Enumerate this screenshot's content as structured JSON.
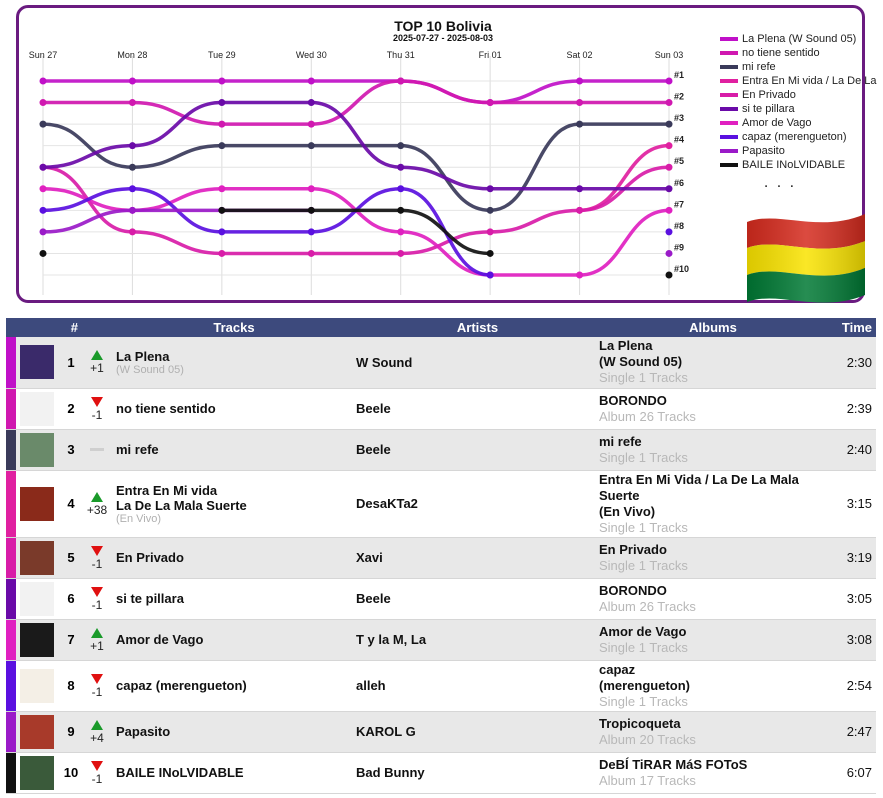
{
  "chart_data": {
    "type": "line",
    "title": "TOP 10 Bolivia",
    "subtitle": "2025-07-27 - 2025-08-03",
    "x": [
      "Sun 27",
      "Mon 28",
      "Tue 29",
      "Wed 30",
      "Thu 31",
      "Fri 01",
      "Sat 02",
      "Sun 03"
    ],
    "y_rank_labels": [
      "#1",
      "#2",
      "#3",
      "#4",
      "#5",
      "#6",
      "#7",
      "#8",
      "#9",
      "#10"
    ],
    "ylim": [
      1,
      10
    ],
    "y_inverted": true,
    "series": [
      {
        "name": "La Plena (W Sound 05)",
        "color": "#c010c8",
        "ranks": [
          1,
          1,
          1,
          1,
          1,
          2,
          1,
          1
        ]
      },
      {
        "name": "no tiene sentido",
        "color": "#d018b0",
        "ranks": [
          2,
          2,
          3,
          3,
          1,
          2,
          2,
          2
        ]
      },
      {
        "name": "mi refe",
        "color": "#3a3a5a",
        "ranks": [
          3,
          5,
          4,
          4,
          4,
          7,
          3,
          3
        ]
      },
      {
        "name": "Entra En Mi vida / La De La Mala Suerte",
        "color": "#e020a0",
        "ranks": [
          null,
          null,
          null,
          null,
          null,
          null,
          7,
          4
        ]
      },
      {
        "name": "En Privado",
        "color": "#d81ca8",
        "ranks": [
          5,
          8,
          9,
          9,
          9,
          8,
          7,
          5
        ]
      },
      {
        "name": "si te pillara",
        "color": "#6a0aa8",
        "ranks": [
          5,
          4,
          2,
          2,
          5,
          6,
          6,
          6
        ]
      },
      {
        "name": "Amor de Vago",
        "color": "#e020c0",
        "ranks": [
          6,
          7,
          6,
          6,
          8,
          10,
          10,
          7
        ]
      },
      {
        "name": "capaz (merengueton)",
        "color": "#5a10e0",
        "ranks": [
          7,
          6,
          8,
          8,
          6,
          10,
          null,
          8
        ]
      },
      {
        "name": "Papasito",
        "color": "#9a1ac8",
        "ranks": [
          8,
          7,
          7,
          7,
          null,
          null,
          null,
          9
        ]
      },
      {
        "name": "BAILE INoLVIDABLE",
        "color": "#111111",
        "ranks": [
          9,
          null,
          7,
          7,
          7,
          9,
          null,
          10
        ]
      }
    ],
    "legend": "right",
    "legend_more": ". . ."
  },
  "table": {
    "headers": {
      "num": "#",
      "tracks": "Tracks",
      "artists": "Artists",
      "albums": "Albums",
      "time": "Time"
    },
    "rows": [
      {
        "rank": "1",
        "dir": "up",
        "move": "+1",
        "title": "La Plena",
        "sub": "(W Sound 05)",
        "artist": "W Sound",
        "album": "La Plena\n(W Sound 05)",
        "album_sub": "Single 1 Tracks",
        "time": "2:30",
        "bar": "#c010c8",
        "cover": "#3a2a6a"
      },
      {
        "rank": "2",
        "dir": "down",
        "move": "-1",
        "title": "no tiene sentido",
        "sub": "",
        "artist": "Beele",
        "album": "BORONDO",
        "album_sub": "Album 26 Tracks",
        "time": "2:39",
        "bar": "#d018b0",
        "cover": "#f2f2f2"
      },
      {
        "rank": "3",
        "dir": "same",
        "move": "",
        "title": "mi refe",
        "sub": "",
        "artist": "Beele",
        "album": "mi refe",
        "album_sub": "Single 1 Tracks",
        "time": "2:40",
        "bar": "#3a3a5a",
        "cover": "#6a8a6a"
      },
      {
        "rank": "4",
        "dir": "up",
        "move": "+38",
        "title": "Entra En Mi vida\nLa De La Mala Suerte",
        "sub": "(En Vivo)",
        "artist": "DesaKTa2",
        "album": "Entra En Mi Vida / La De La Mala Suerte\n(En Vivo)",
        "album_sub": "Single 1 Tracks",
        "time": "3:15",
        "bar": "#e020a0",
        "cover": "#8a2a1a"
      },
      {
        "rank": "5",
        "dir": "down",
        "move": "-1",
        "title": "En Privado",
        "sub": "",
        "artist": "Xavi",
        "album": "En Privado",
        "album_sub": "Single 1 Tracks",
        "time": "3:19",
        "bar": "#d81ca8",
        "cover": "#7a3a2a"
      },
      {
        "rank": "6",
        "dir": "down",
        "move": "-1",
        "title": "si te pillara",
        "sub": "",
        "artist": "Beele",
        "album": "BORONDO",
        "album_sub": "Album 26 Tracks",
        "time": "3:05",
        "bar": "#6a0aa8",
        "cover": "#f2f2f2"
      },
      {
        "rank": "7",
        "dir": "up",
        "move": "+1",
        "title": "Amor de Vago",
        "sub": "",
        "artist": "T y la M, La",
        "album": "Amor de Vago",
        "album_sub": "Single 1 Tracks",
        "time": "3:08",
        "bar": "#e020c0",
        "cover": "#1a1a1a"
      },
      {
        "rank": "8",
        "dir": "down",
        "move": "-1",
        "title": "capaz (merengueton)",
        "sub": "",
        "artist": "alleh",
        "album": "capaz\n(merengueton)",
        "album_sub": "Single 1 Tracks",
        "time": "2:54",
        "bar": "#5a10e0",
        "cover": "#f4efe6"
      },
      {
        "rank": "9",
        "dir": "up",
        "move": "+4",
        "title": "Papasito",
        "sub": "",
        "artist": "KAROL G",
        "album": "Tropicoqueta",
        "album_sub": "Album 20 Tracks",
        "time": "2:47",
        "bar": "#9a1ac8",
        "cover": "#a83a2a"
      },
      {
        "rank": "10",
        "dir": "down",
        "move": "-1",
        "title": "BAILE INoLVIDABLE",
        "sub": "",
        "artist": "Bad Bunny",
        "album": "DeBÍ TiRAR MáS FOToS",
        "album_sub": "Album 17 Tracks",
        "time": "6:07",
        "bar": "#111111",
        "cover": "#3a5a3a"
      }
    ]
  }
}
